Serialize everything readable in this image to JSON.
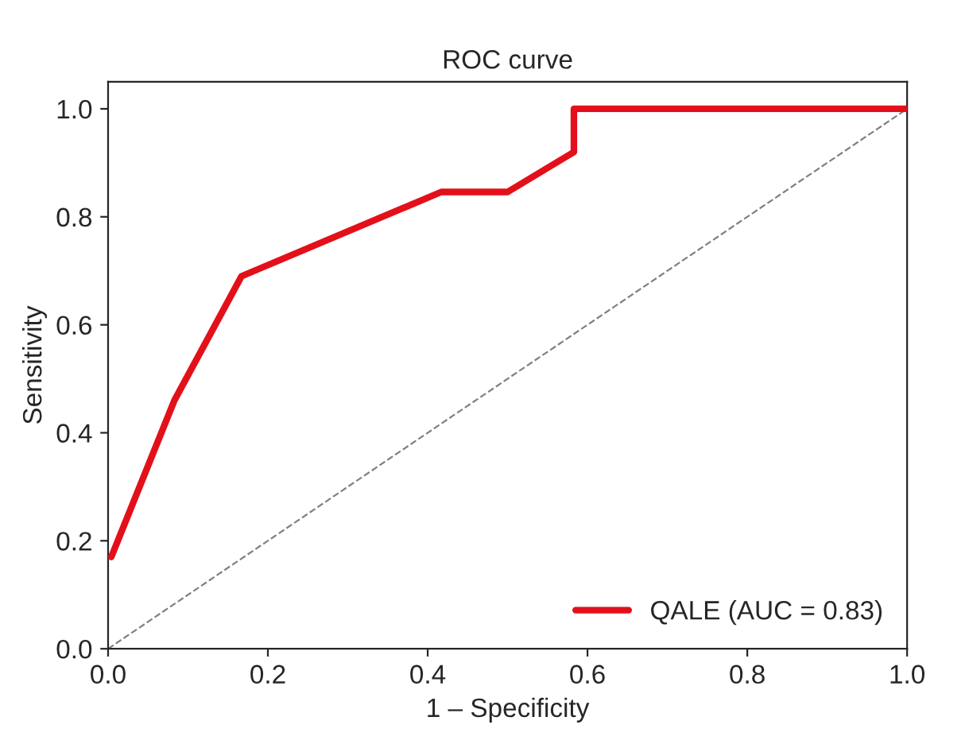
{
  "chart_data": {
    "type": "line",
    "title": "ROC curve",
    "xlabel": "1 – Specificity",
    "ylabel": "Sensitivity",
    "xlim": [
      0,
      1
    ],
    "ylim": [
      0,
      1.05
    ],
    "xticks": [
      {
        "value": 0,
        "label": "0.0"
      },
      {
        "value": 0.2,
        "label": "0.2"
      },
      {
        "value": 0.4,
        "label": "0.4"
      },
      {
        "value": 0.6,
        "label": "0.6"
      },
      {
        "value": 0.8,
        "label": "0.8"
      },
      {
        "value": 1,
        "label": "1.0"
      }
    ],
    "yticks": [
      {
        "value": 0,
        "label": "0.0"
      },
      {
        "value": 0.2,
        "label": "0.2"
      },
      {
        "value": 0.4,
        "label": "0.4"
      },
      {
        "value": 0.6,
        "label": "0.6"
      },
      {
        "value": 0.8,
        "label": "0.8"
      },
      {
        "value": 1,
        "label": "1.0"
      }
    ],
    "legend": "bottom right",
    "grid": false,
    "series": [
      {
        "name": "QALE (AUC = 0.83)",
        "color": "#e3101a",
        "line_style": "solid",
        "x": [
          0.004,
          0.083,
          0.167,
          0.417,
          0.5,
          0.583,
          0.583,
          1.0
        ],
        "values": [
          0.17,
          0.46,
          0.69,
          0.846,
          0.846,
          0.92,
          1.0,
          1.0
        ]
      },
      {
        "color": "#808080",
        "line_style": "dashed",
        "x": [
          0,
          1
        ],
        "values": [
          0,
          1
        ]
      }
    ]
  }
}
